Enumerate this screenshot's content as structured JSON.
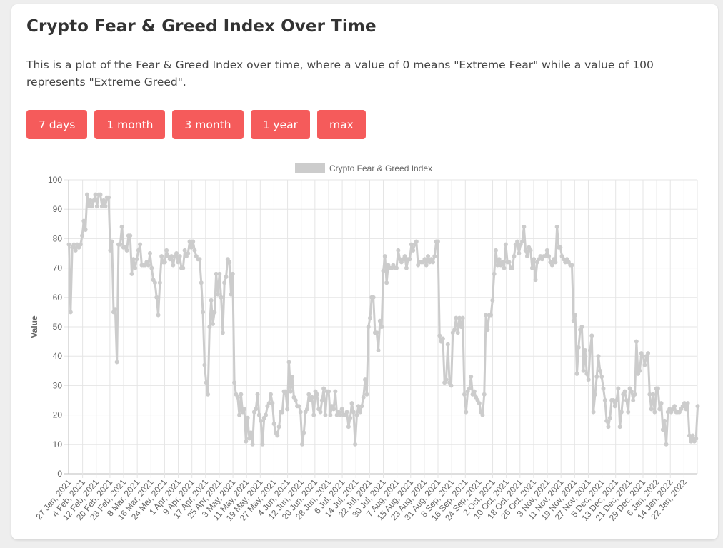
{
  "page": {
    "title": "Crypto Fear & Greed Index Over Time",
    "description": "This is a plot of the Fear & Greed Index over time, where a value of 0 means \"Extreme Fear\" while a value of 100 represents \"Extreme Greed\".",
    "buttons": [
      "7 days",
      "1 month",
      "3 month",
      "1 year",
      "max"
    ],
    "accent_color": "#f55b5b"
  },
  "chart_data": {
    "type": "line",
    "title": "",
    "xlabel": "",
    "ylabel": "Value",
    "ylim": [
      0,
      100
    ],
    "yticks": [
      0,
      10,
      20,
      30,
      40,
      50,
      60,
      70,
      80,
      90,
      100
    ],
    "grid": true,
    "legend_position": "top",
    "line_color": "#cccccc",
    "x_tick_labels": [
      "27 Jan, 2021",
      "4 Feb, 2021",
      "12 Feb, 2021",
      "20 Feb, 2021",
      "28 Feb, 2021",
      "8 Mar, 2021",
      "16 Mar, 2021",
      "24 Mar, 2021",
      "1 Apr, 2021",
      "9 Apr, 2021",
      "17 Apr, 2021",
      "25 Apr, 2021",
      "3 May, 2021",
      "11 May, 2021",
      "19 May, 2021",
      "27 May, 2021",
      "4 Jun, 2021",
      "12 Jun, 2021",
      "20 Jun, 2021",
      "28 Jun, 2021",
      "6 Jul, 2021",
      "14 Jul, 2021",
      "22 Jul, 2021",
      "30 Jul, 2021",
      "7 Aug, 2021",
      "15 Aug, 2021",
      "23 Aug, 2021",
      "31 Aug, 2021",
      "8 Sep, 2021",
      "16 Sep, 2021",
      "24 Sep, 2021",
      "2 Oct, 2021",
      "10 Oct, 2021",
      "18 Oct, 2021",
      "26 Oct, 2021",
      "3 Nov, 2021",
      "11 Nov, 2021",
      "19 Nov, 2021",
      "27 Nov, 2021",
      "5 Dec, 2021",
      "13 Dec, 2021",
      "21 Dec, 2021",
      "29 Dec, 2021",
      "6 Jan, 2022",
      "14 Jan, 2022",
      "22 Jan, 2022"
    ],
    "x_start": "27 Jan, 2021",
    "x_end": "24 Jan, 2022",
    "series": [
      {
        "name": "Crypto Fear & Greed Index",
        "values": [
          78,
          55,
          77,
          78,
          76,
          78,
          77,
          78,
          81,
          86,
          83,
          95,
          91,
          93,
          91,
          93,
          95,
          91,
          95,
          95,
          91,
          93,
          91,
          94,
          94,
          76,
          79,
          55,
          56,
          38,
          78,
          78,
          84,
          77,
          77,
          76,
          81,
          81,
          68,
          73,
          70,
          73,
          76,
          78,
          71,
          71,
          71,
          72,
          71,
          75,
          70,
          66,
          65,
          60,
          54,
          65,
          74,
          72,
          72,
          76,
          74,
          73,
          74,
          71,
          74,
          75,
          72,
          74,
          70,
          70,
          76,
          74,
          75,
          79,
          77,
          79,
          76,
          74,
          73,
          73,
          65,
          55,
          37,
          31,
          27,
          50,
          59,
          51,
          55,
          68,
          61,
          68,
          60,
          48,
          65,
          67,
          73,
          72,
          61,
          68,
          31,
          27,
          26,
          20,
          27,
          21,
          22,
          11,
          19,
          12,
          14,
          10,
          21,
          22,
          27,
          20,
          18,
          10,
          19,
          20,
          23,
          24,
          27,
          24,
          17,
          14,
          13,
          16,
          21,
          21,
          28,
          28,
          22,
          38,
          28,
          33,
          26,
          25,
          23,
          23,
          21,
          10,
          14,
          21,
          22,
          27,
          25,
          26,
          20,
          28,
          27,
          22,
          21,
          25,
          29,
          20,
          28,
          28,
          20,
          23,
          22,
          28,
          20,
          21,
          20,
          22,
          20,
          20,
          21,
          16,
          19,
          24,
          21,
          10,
          20,
          23,
          21,
          23,
          26,
          32,
          27,
          50,
          53,
          60,
          60,
          48,
          48,
          42,
          52,
          50,
          69,
          74,
          65,
          71,
          70,
          70,
          71,
          70,
          70,
          76,
          73,
          72,
          73,
          74,
          70,
          73,
          73,
          78,
          76,
          78,
          79,
          71,
          72,
          72,
          72,
          73,
          71,
          74,
          72,
          73,
          72,
          74,
          79,
          79,
          47,
          45,
          46,
          31,
          32,
          44,
          31,
          30,
          48,
          49,
          53,
          48,
          53,
          50,
          53,
          27,
          21,
          28,
          29,
          33,
          27,
          28,
          26,
          25,
          24,
          21,
          20,
          27,
          54,
          49,
          54,
          54,
          59,
          68,
          76,
          71,
          73,
          71,
          72,
          70,
          78,
          72,
          72,
          70,
          70,
          74,
          78,
          79,
          75,
          78,
          79,
          84,
          76,
          74,
          77,
          76,
          70,
          73,
          66,
          72,
          73,
          74,
          73,
          74,
          74,
          76,
          74,
          72,
          71,
          73,
          72,
          84,
          77,
          77,
          74,
          73,
          72,
          73,
          72,
          71,
          71,
          52,
          54,
          34,
          43,
          49,
          50,
          35,
          42,
          34,
          32,
          42,
          47,
          21,
          27,
          33,
          40,
          35,
          33,
          29,
          25,
          18,
          16,
          19,
          25,
          25,
          23,
          25,
          29,
          16,
          21,
          27,
          28,
          25,
          21,
          29,
          28,
          25,
          27,
          45,
          34,
          35,
          41,
          40,
          37,
          40,
          41,
          27,
          22,
          27,
          21,
          29,
          29,
          22,
          24,
          15,
          18,
          10,
          21,
          22,
          21,
          22,
          23,
          21,
          21,
          21,
          22,
          23,
          24,
          22,
          24,
          13,
          11,
          13,
          11,
          12,
          23
        ]
      }
    ]
  }
}
